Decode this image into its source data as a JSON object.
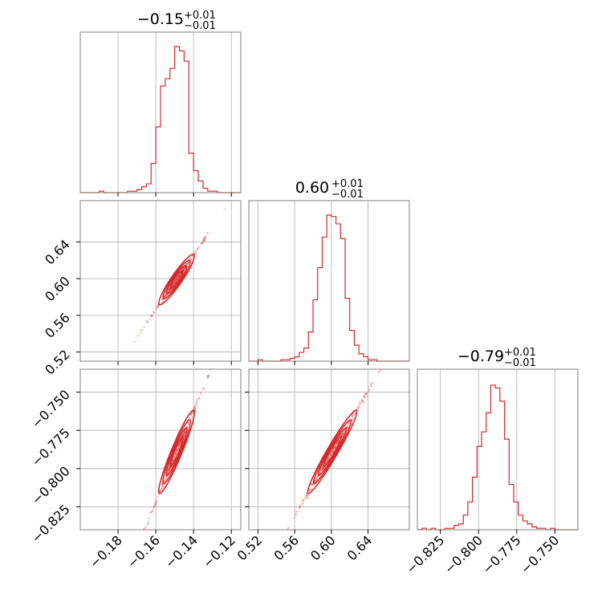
{
  "chart_data": {
    "type": "corner",
    "parameters": [
      {
        "title": {
          "main": "−0.15",
          "sup": "+0.01",
          "sub": "−0.01"
        },
        "ticks": [
          -0.18,
          -0.16,
          -0.14,
          -0.12
        ],
        "tick_labels": [
          "−0.18",
          "−0.16",
          "−0.14",
          "−0.12"
        ],
        "range": [
          -0.2,
          -0.115
        ],
        "histogram": {
          "bins": [
            -0.2,
            -0.1975,
            -0.195,
            -0.1925,
            -0.19,
            -0.1875,
            -0.185,
            -0.1825,
            -0.18,
            -0.1775,
            -0.175,
            -0.1725,
            -0.17,
            -0.1675,
            -0.165,
            -0.1625,
            -0.16,
            -0.1575,
            -0.155,
            -0.1525,
            -0.15,
            -0.1475,
            -0.145,
            -0.1425,
            -0.14,
            -0.1375,
            -0.135,
            -0.1325,
            -0.13,
            -0.1275,
            -0.125,
            -0.1225,
            -0.12,
            -0.1175,
            -0.115
          ],
          "counts": [
            0,
            0,
            0,
            0,
            0.01,
            0,
            0,
            0,
            0,
            0,
            0.01,
            0.01,
            0.02,
            0.04,
            0.06,
            0.2,
            0.45,
            0.73,
            0.78,
            0.85,
            1.0,
            0.97,
            0.9,
            0.27,
            0.15,
            0.08,
            0.03,
            0.01,
            0.01,
            0,
            0,
            0,
            0,
            0
          ]
        }
      },
      {
        "title": {
          "main": "0.60",
          "sup": "+0.01",
          "sub": "−0.01"
        },
        "ticks": [
          0.52,
          0.56,
          0.6,
          0.64
        ],
        "tick_labels": [
          "0.52",
          "0.56",
          "0.60",
          "0.64"
        ],
        "range": [
          0.51,
          0.685
        ],
        "histogram": {
          "bins": [
            0.51,
            0.515,
            0.52,
            0.525,
            0.53,
            0.535,
            0.54,
            0.545,
            0.55,
            0.555,
            0.56,
            0.565,
            0.57,
            0.575,
            0.58,
            0.585,
            0.59,
            0.595,
            0.6,
            0.605,
            0.61,
            0.615,
            0.62,
            0.625,
            0.63,
            0.635,
            0.64,
            0.645,
            0.65,
            0.655,
            0.66,
            0.665,
            0.67,
            0.675,
            0.68,
            0.685
          ],
          "counts": [
            0,
            0,
            0.01,
            0,
            0,
            0,
            0,
            0.01,
            0.01,
            0.02,
            0.03,
            0.06,
            0.09,
            0.2,
            0.42,
            0.64,
            0.85,
            1.0,
            0.99,
            0.94,
            0.84,
            0.43,
            0.21,
            0.11,
            0.05,
            0.03,
            0.01,
            0.01,
            0,
            0,
            0,
            0,
            0,
            0,
            0
          ]
        }
      },
      {
        "title": {
          "main": "−0.79",
          "sup": "+0.01",
          "sub": "−0.01"
        },
        "ticks": [
          -0.825,
          -0.8,
          -0.775,
          -0.75
        ],
        "tick_labels": [
          "−0.825",
          "−0.800",
          "−0.775",
          "−0.750"
        ],
        "range": [
          -0.84,
          -0.735
        ],
        "histogram": {
          "bins": [
            -0.84,
            -0.837,
            -0.834,
            -0.831,
            -0.828,
            -0.825,
            -0.822,
            -0.819,
            -0.816,
            -0.813,
            -0.81,
            -0.807,
            -0.804,
            -0.801,
            -0.798,
            -0.795,
            -0.792,
            -0.789,
            -0.786,
            -0.783,
            -0.78,
            -0.777,
            -0.774,
            -0.771,
            -0.768,
            -0.765,
            -0.762,
            -0.759,
            -0.756,
            -0.753,
            -0.75,
            -0.747,
            -0.744,
            -0.741,
            -0.738,
            -0.735
          ],
          "counts": [
            0,
            0.01,
            0,
            0.01,
            0,
            0,
            0.01,
            0.01,
            0.03,
            0.04,
            0.1,
            0.19,
            0.36,
            0.57,
            0.67,
            0.8,
            0.99,
            0.97,
            0.88,
            0.62,
            0.31,
            0.19,
            0.1,
            0.06,
            0.04,
            0.02,
            0.01,
            0.01,
            0,
            0.01,
            0,
            0,
            0,
            0,
            0
          ]
        }
      }
    ],
    "correlations": [
      {
        "pair": [
          1,
          0
        ],
        "slope": 3.0
      },
      {
        "pair": [
          2,
          0
        ],
        "slope": 3.0
      },
      {
        "pair": [
          2,
          1
        ],
        "slope": 1.0
      }
    ],
    "grid": true,
    "color": "#d62728"
  }
}
